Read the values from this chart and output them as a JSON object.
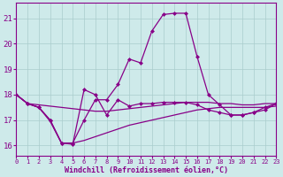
{
  "xlabel": "Windchill (Refroidissement éolien,°C)",
  "background_color": "#ceeaea",
  "grid_color": "#aacccc",
  "line_color": "#880088",
  "x_ticks": [
    0,
    1,
    2,
    3,
    4,
    5,
    6,
    7,
    8,
    9,
    10,
    11,
    12,
    13,
    14,
    15,
    16,
    17,
    18,
    19,
    20,
    21,
    22,
    23
  ],
  "y_ticks": [
    16,
    17,
    18,
    19,
    20,
    21
  ],
  "xlim": [
    0,
    23
  ],
  "ylim": [
    15.6,
    21.6
  ],
  "series": {
    "line_peak": {
      "x": [
        0,
        1,
        2,
        3,
        4,
        5,
        6,
        7,
        8,
        9,
        10,
        11,
        12,
        13,
        14,
        15,
        16,
        17,
        18,
        19,
        20,
        21,
        22,
        23
      ],
      "y": [
        18.0,
        17.65,
        17.5,
        17.0,
        16.1,
        16.1,
        17.0,
        17.8,
        17.8,
        18.4,
        19.4,
        19.25,
        20.5,
        21.15,
        21.2,
        21.2,
        19.5,
        18.0,
        17.6,
        17.2,
        17.2,
        17.3,
        17.5,
        17.65
      ],
      "marker": "D",
      "markersize": 2.5
    },
    "line_mid": {
      "x": [
        0,
        1,
        2,
        3,
        4,
        5,
        6,
        7,
        8,
        9,
        10,
        11,
        12,
        13,
        14,
        15,
        16,
        17,
        18,
        19,
        20,
        21,
        22,
        23
      ],
      "y": [
        18.0,
        17.65,
        17.5,
        17.0,
        16.1,
        16.05,
        18.2,
        18.0,
        17.2,
        17.8,
        17.55,
        17.65,
        17.65,
        17.7,
        17.7,
        17.7,
        17.6,
        17.4,
        17.3,
        17.2,
        17.2,
        17.3,
        17.4,
        17.65
      ],
      "marker": "D",
      "markersize": 2.5
    },
    "line_upper_flat": {
      "x": [
        0,
        1,
        2,
        3,
        4,
        5,
        6,
        7,
        8,
        9,
        10,
        11,
        12,
        13,
        14,
        15,
        16,
        17,
        18,
        19,
        20,
        21,
        22,
        23
      ],
      "y": [
        18.0,
        17.65,
        17.6,
        17.55,
        17.5,
        17.45,
        17.4,
        17.35,
        17.35,
        17.4,
        17.45,
        17.5,
        17.55,
        17.6,
        17.65,
        17.7,
        17.7,
        17.7,
        17.65,
        17.65,
        17.6,
        17.6,
        17.65,
        17.65
      ],
      "marker": null,
      "markersize": 0
    },
    "line_lower": {
      "x": [
        0,
        1,
        2,
        3,
        4,
        5,
        6,
        7,
        8,
        9,
        10,
        11,
        12,
        13,
        14,
        15,
        16,
        17,
        18,
        19,
        20,
        21,
        22,
        23
      ],
      "y": [
        18.0,
        17.65,
        17.5,
        16.95,
        16.1,
        16.1,
        16.2,
        16.35,
        16.5,
        16.65,
        16.8,
        16.9,
        17.0,
        17.1,
        17.2,
        17.3,
        17.4,
        17.45,
        17.5,
        17.5,
        17.5,
        17.5,
        17.5,
        17.55
      ],
      "marker": null,
      "markersize": 0
    }
  }
}
